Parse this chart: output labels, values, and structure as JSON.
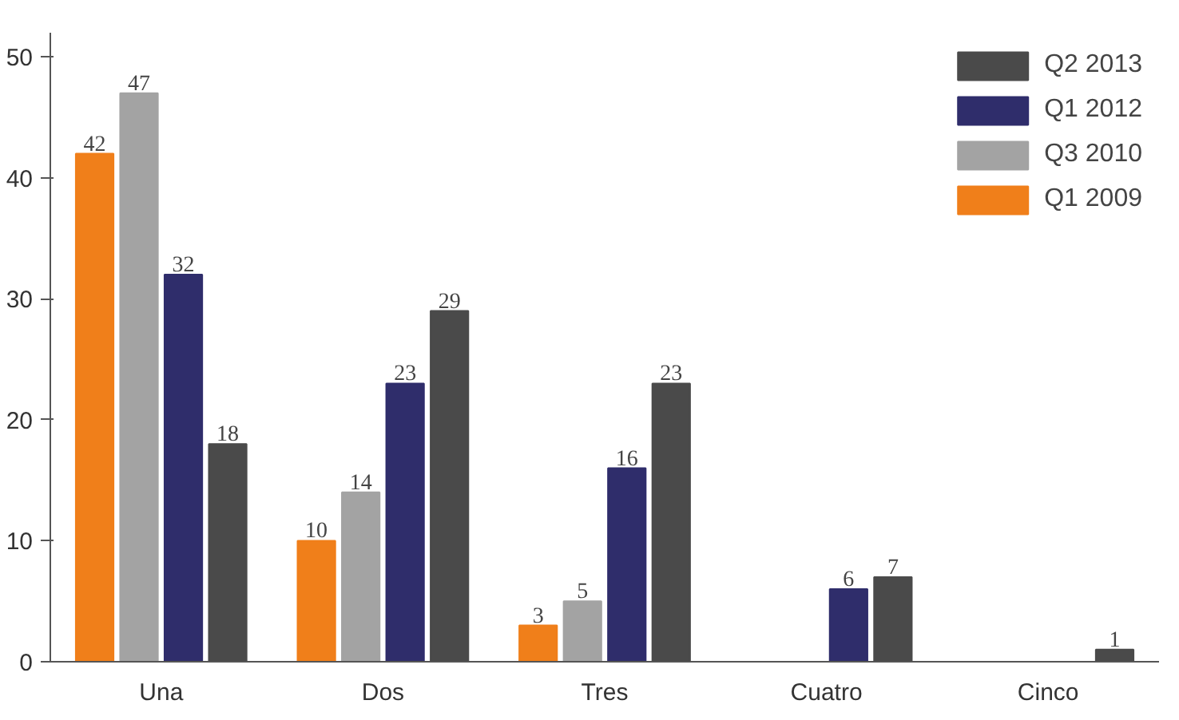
{
  "chart_data": {
    "type": "bar",
    "categories": [
      "Una",
      "Dos",
      "Tres",
      "Cuatro",
      "Cinco"
    ],
    "series": [
      {
        "name": "Q1 2009",
        "color": "#f07f1a",
        "values": [
          42,
          10,
          3,
          null,
          null
        ]
      },
      {
        "name": "Q3 2010",
        "color": "#a3a3a3",
        "values": [
          47,
          14,
          5,
          null,
          null
        ]
      },
      {
        "name": "Q1 2012",
        "color": "#2f2d6b",
        "values": [
          32,
          23,
          16,
          6,
          null
        ]
      },
      {
        "name": "Q2 2013",
        "color": "#4a4a4a",
        "values": [
          18,
          29,
          23,
          7,
          1
        ]
      }
    ],
    "ylim": [
      0,
      52
    ],
    "yticks": [
      0,
      10,
      20,
      30,
      40,
      50
    ],
    "grid": false,
    "legend": "top right",
    "data_labels": true
  }
}
